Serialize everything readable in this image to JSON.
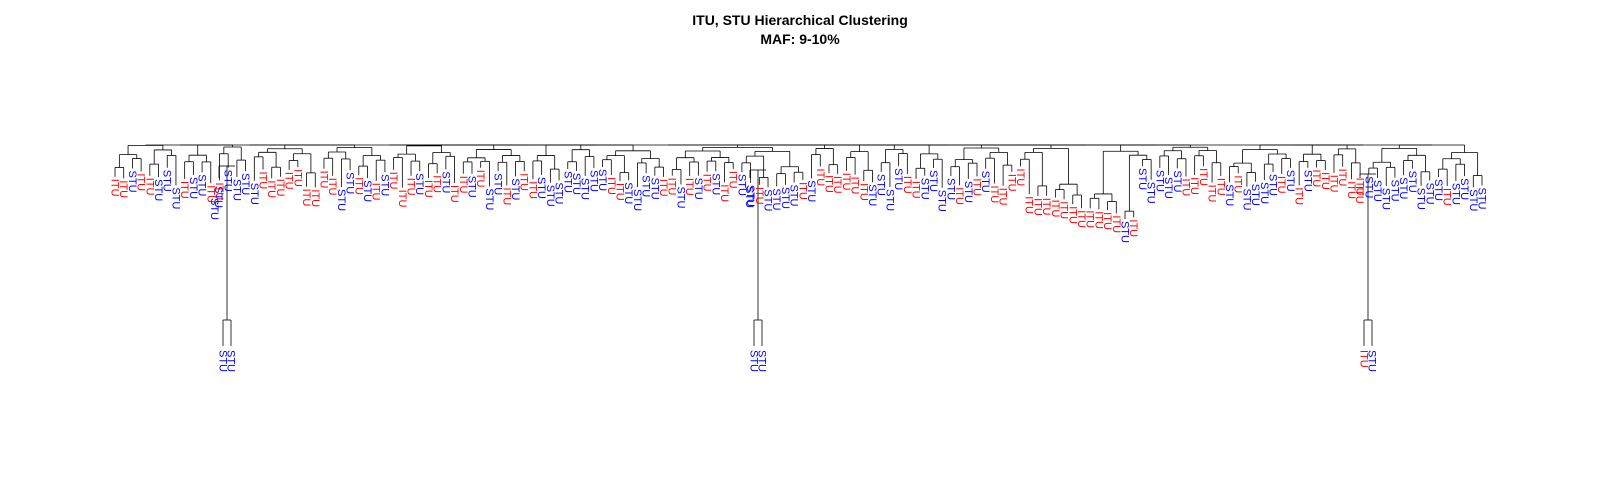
{
  "title": "ITU, STU Hierarchical Clustering",
  "subtitle": "MAF: 9-10%",
  "colors": {
    "ITU": "#ff0000",
    "STU": "#0000ff",
    "branch": "#000000"
  },
  "leaves": [
    "ITU",
    "ITU",
    "STU",
    "ITU",
    "ITU",
    "STU",
    "STU",
    "STU",
    "ITU",
    "STU",
    "STU",
    "ITU",
    "ITU",
    "STU",
    "STU",
    "STU",
    "STU",
    "ITU",
    "ITU",
    "ITU",
    "ITU",
    "ITU",
    "ITU",
    "ITU",
    "ITU",
    "ITU",
    "STU",
    "STU",
    "ITU",
    "STU",
    "ITU",
    "STU",
    "ITU",
    "ITU",
    "ITU",
    "STU",
    "ITU",
    "ITU",
    "STU",
    "ITU",
    "ITU",
    "STU",
    "ITU",
    "STU",
    "STU",
    "ITU",
    "STU",
    "ITU",
    "ITU",
    "STU",
    "STU",
    "STU",
    "STU",
    "STU",
    "STU",
    "STU",
    "STU",
    "ITU",
    "ITU",
    "STU",
    "STU",
    "STU",
    "STU",
    "ITU",
    "ITU",
    "STU",
    "ITU",
    "STU",
    "ITU",
    "STU",
    "ITU",
    "ITU",
    "STU",
    "STU",
    "ITU",
    "STU",
    "STU",
    "STU",
    "STU",
    "ITU",
    "STU",
    "ITU",
    "ITU",
    "ITU",
    "ITU",
    "ITU",
    "ITU",
    "STU",
    "STU",
    "STU",
    "STU",
    "ITU",
    "ITU",
    "STU",
    "STU",
    "STU",
    "STU",
    "ITU",
    "STU",
    "ITU",
    "STU",
    "ITU",
    "ITU",
    "ITU",
    "ITU",
    "ITU",
    "ITU",
    "ITU",
    "ITU",
    "ITU",
    "ITU",
    "ITU",
    "ITU",
    "ITU",
    "ITU",
    "ITU",
    "STU",
    "ITU",
    "STU",
    "STU",
    "STU",
    "STU",
    "STU",
    "ITU",
    "ITU",
    "ITU",
    "ITU",
    "ITU",
    "STU",
    "ITU",
    "STU",
    "STU",
    "STU",
    "STU",
    "ITU",
    "STU",
    "ITU",
    "STU",
    "ITU",
    "ITU",
    "ITU",
    "ITU",
    "ITU",
    "ITU",
    "STU",
    "STU",
    "STU",
    "STU",
    "STU",
    "STU",
    "STU",
    "STU",
    "STU",
    "ITU",
    "STU",
    "STU",
    "STU",
    "STU"
  ],
  "outliers": [
    {
      "top": "STU",
      "pair": [
        "STU",
        "STU"
      ]
    },
    {
      "top": "STU",
      "pair": [
        "STU",
        "STU"
      ]
    },
    {
      "top": "ITU",
      "pair": [
        "ITU",
        "STU"
      ]
    }
  ]
}
